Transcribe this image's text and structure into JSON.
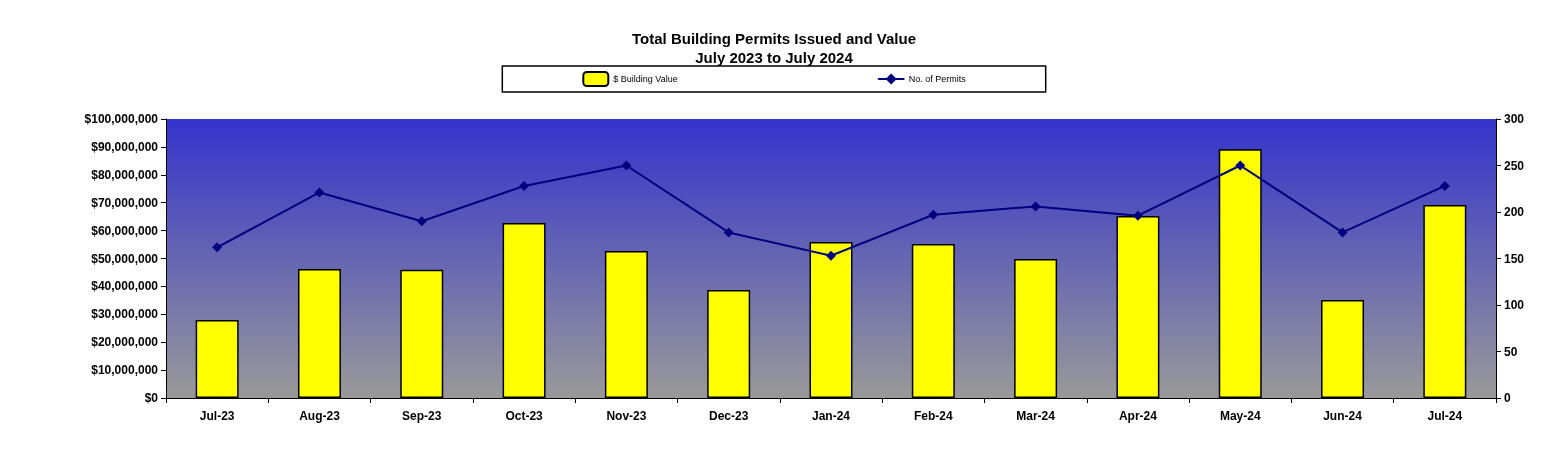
{
  "chart_data": {
    "type": "bar",
    "title": "Total Building Permits Issued and Value\nJuly 2023 to July 2024",
    "categories": [
      "Jul-23",
      "Aug-23",
      "Sep-23",
      "Oct-23",
      "Nov-23",
      "Dec-23",
      "Jan-24",
      "Feb-24",
      "Mar-24",
      "Apr-24",
      "May-24",
      "Jun-24",
      "Jul-24"
    ],
    "series": [
      {
        "name": "$ Building Value",
        "color": "#ffff00",
        "values": [
          28000000,
          46200000,
          46000000,
          62700000,
          52700000,
          38700000,
          55900000,
          55200000,
          49800000,
          65200000,
          89200000,
          35100000,
          69200000
        ]
      },
      {
        "name": "No. of Permits",
        "type": "line",
        "axis": "y2",
        "color": "#000080",
        "values": [
          162,
          221,
          190,
          228,
          250,
          178,
          153,
          197,
          206,
          196,
          250,
          178,
          228
        ]
      }
    ],
    "ylim": [
      0,
      100000000
    ],
    "yticks": [
      {
        "value": 0,
        "label": "$0"
      },
      {
        "value": 10000000,
        "label": "$10,000,000"
      },
      {
        "value": 20000000,
        "label": "$20,000,000"
      },
      {
        "value": 30000000,
        "label": "$30,000,000"
      },
      {
        "value": 40000000,
        "label": "$40,000,000"
      },
      {
        "value": 50000000,
        "label": "$50,000,000"
      },
      {
        "value": 60000000,
        "label": "$60,000,000"
      },
      {
        "value": 70000000,
        "label": "$70,000,000"
      },
      {
        "value": 80000000,
        "label": "$80,000,000"
      },
      {
        "value": 90000000,
        "label": "$90,000,000"
      },
      {
        "value": 100000000,
        "label": "$100,000,000"
      }
    ],
    "y2lim": [
      0,
      300
    ],
    "y2ticks": [
      0,
      50,
      100,
      150,
      200,
      250,
      300
    ],
    "grid": false,
    "legend": "top",
    "marker": "diamond",
    "line_style": "solid"
  }
}
